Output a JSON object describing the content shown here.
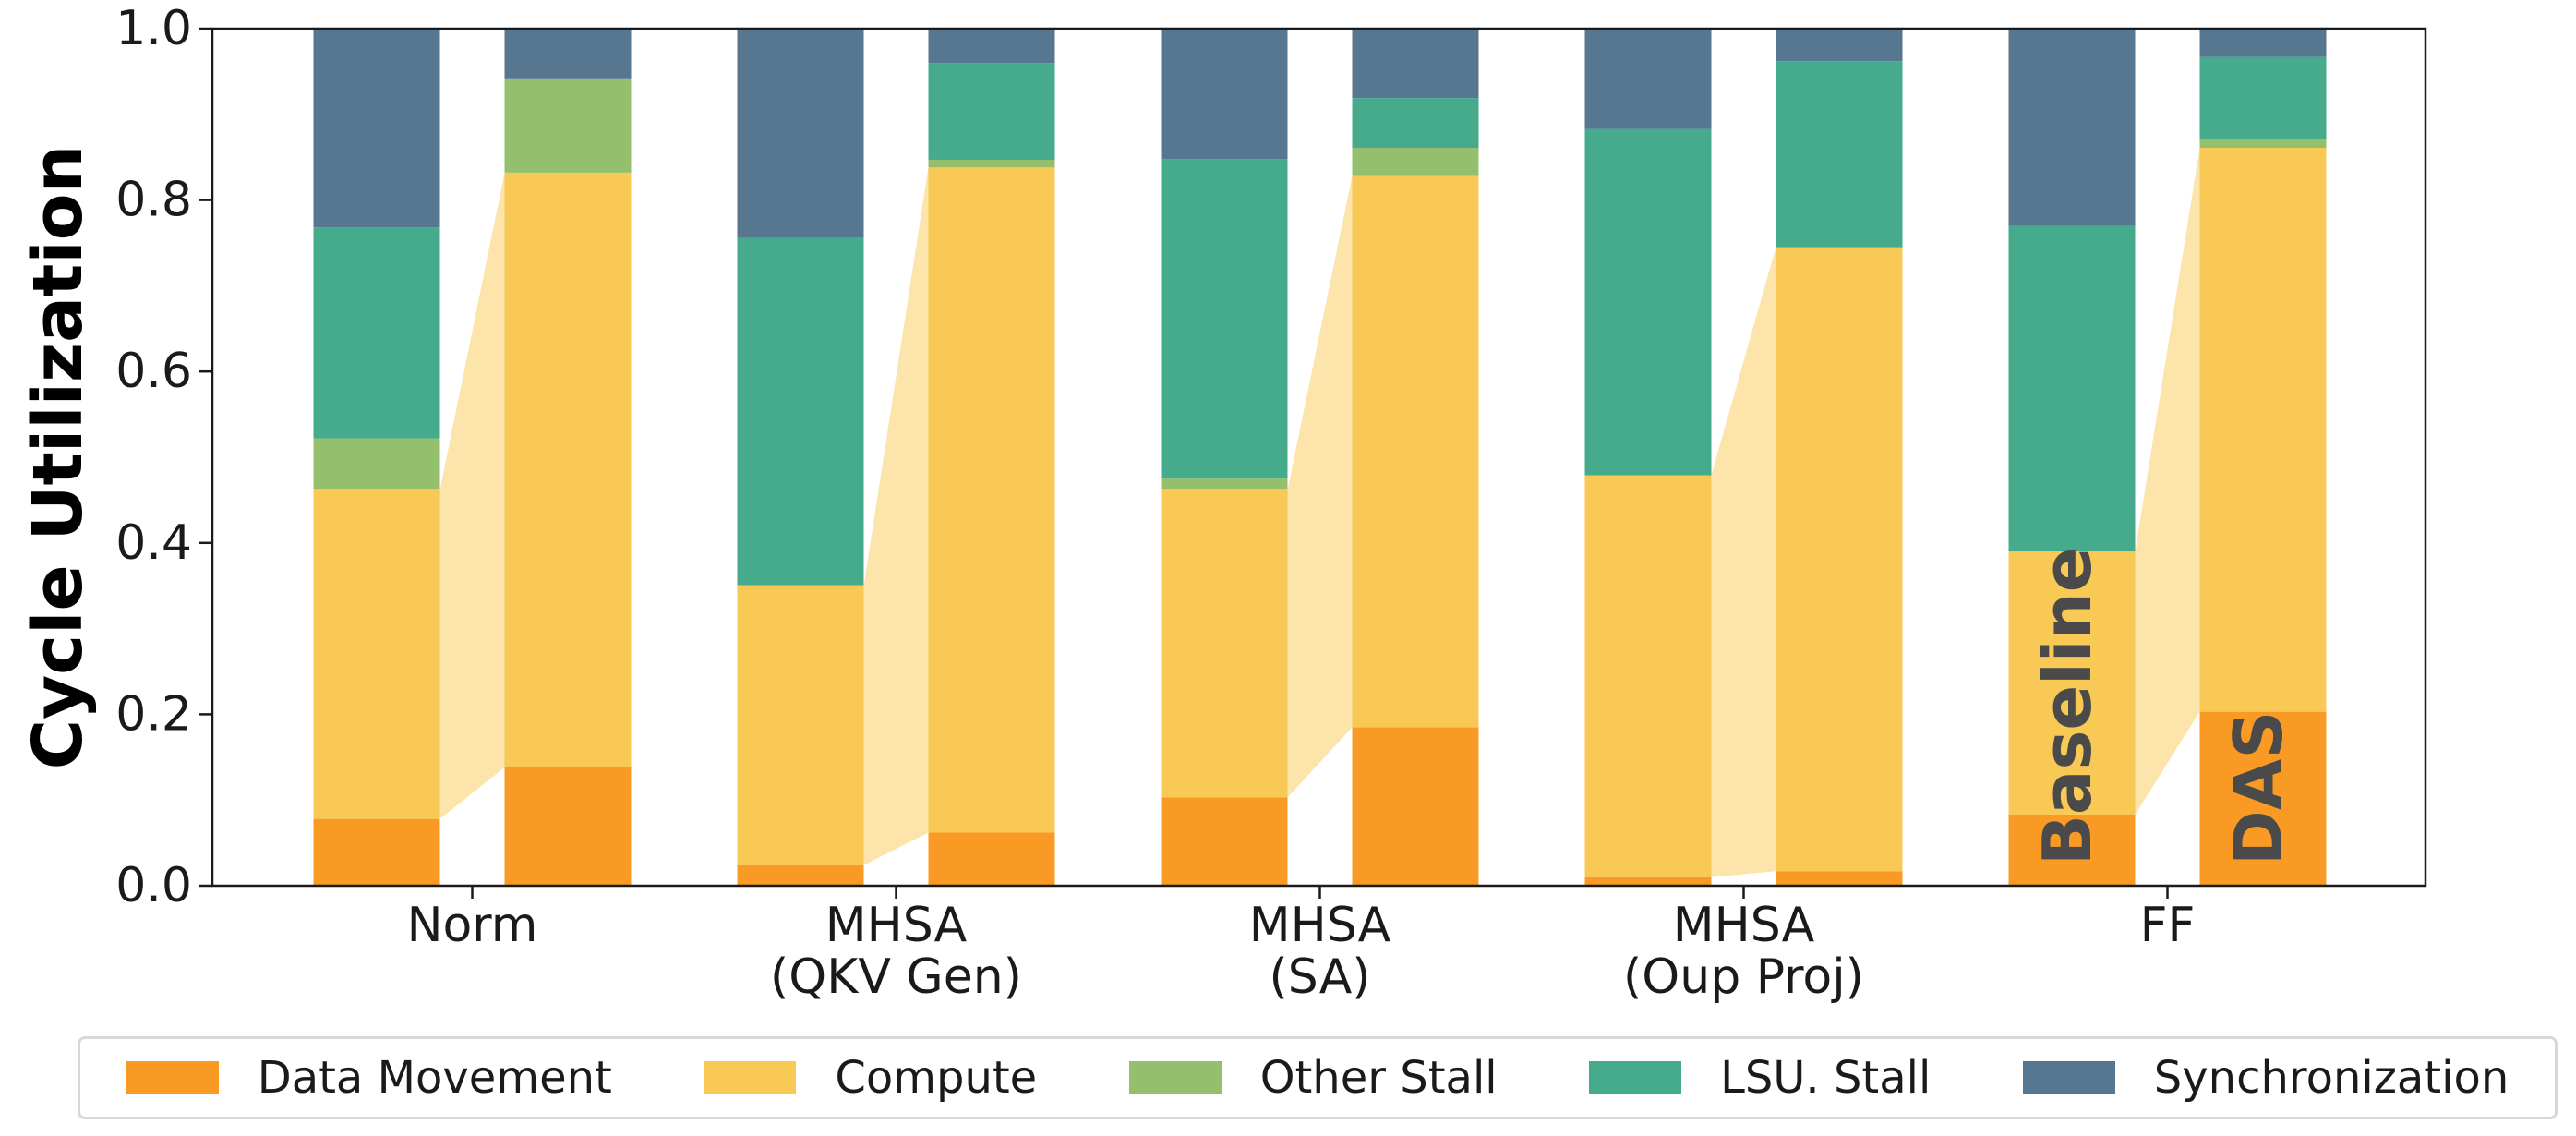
{
  "chart_data": {
    "type": "bar",
    "stacked": true,
    "ylabel": "Cycle Utilization",
    "ylim": [
      0,
      1.0
    ],
    "yticks": [
      "0.0",
      "0.2",
      "0.4",
      "0.6",
      "0.8",
      "1.0"
    ],
    "groups": [
      {
        "label_lines": [
          "Norm"
        ]
      },
      {
        "label_lines": [
          "MHSA",
          "(QKV Gen)"
        ]
      },
      {
        "label_lines": [
          "MHSA",
          "(SA)"
        ]
      },
      {
        "label_lines": [
          "MHSA",
          "(Oup Proj)"
        ]
      },
      {
        "label_lines": [
          "FF"
        ]
      }
    ],
    "bar_variants": [
      "Baseline",
      "DAS"
    ],
    "series": [
      {
        "name": "Data Movement",
        "color": "#f89a24",
        "baseline": [
          0.078,
          0.024,
          0.103,
          0.01,
          0.083
        ],
        "das": [
          0.138,
          0.062,
          0.185,
          0.017,
          0.203
        ]
      },
      {
        "name": "Compute",
        "color": "#f9c955",
        "baseline": [
          0.384,
          0.326,
          0.359,
          0.469,
          0.307
        ],
        "das": [
          0.694,
          0.776,
          0.643,
          0.728,
          0.658
        ]
      },
      {
        "name": "Other Stall",
        "color": "#94c06e",
        "baseline": [
          0.06,
          0.001,
          0.013,
          0.0,
          0.0
        ],
        "das": [
          0.11,
          0.009,
          0.033,
          0.0,
          0.01
        ]
      },
      {
        "name": "LSU. Stall",
        "color": "#45ab8c",
        "baseline": [
          0.246,
          0.405,
          0.373,
          0.404,
          0.38
        ],
        "das": [
          0.0,
          0.113,
          0.058,
          0.217,
          0.096
        ]
      },
      {
        "name": "Synchronization",
        "color": "#56778f",
        "baseline": [
          0.232,
          0.244,
          0.152,
          0.117,
          0.23
        ],
        "das": [
          0.058,
          0.04,
          0.081,
          0.038,
          0.033
        ]
      }
    ],
    "annotations": [
      {
        "text": "Baseline",
        "group": 4,
        "variant": "baseline"
      },
      {
        "text": "DAS",
        "group": 4,
        "variant": "das"
      }
    ]
  }
}
